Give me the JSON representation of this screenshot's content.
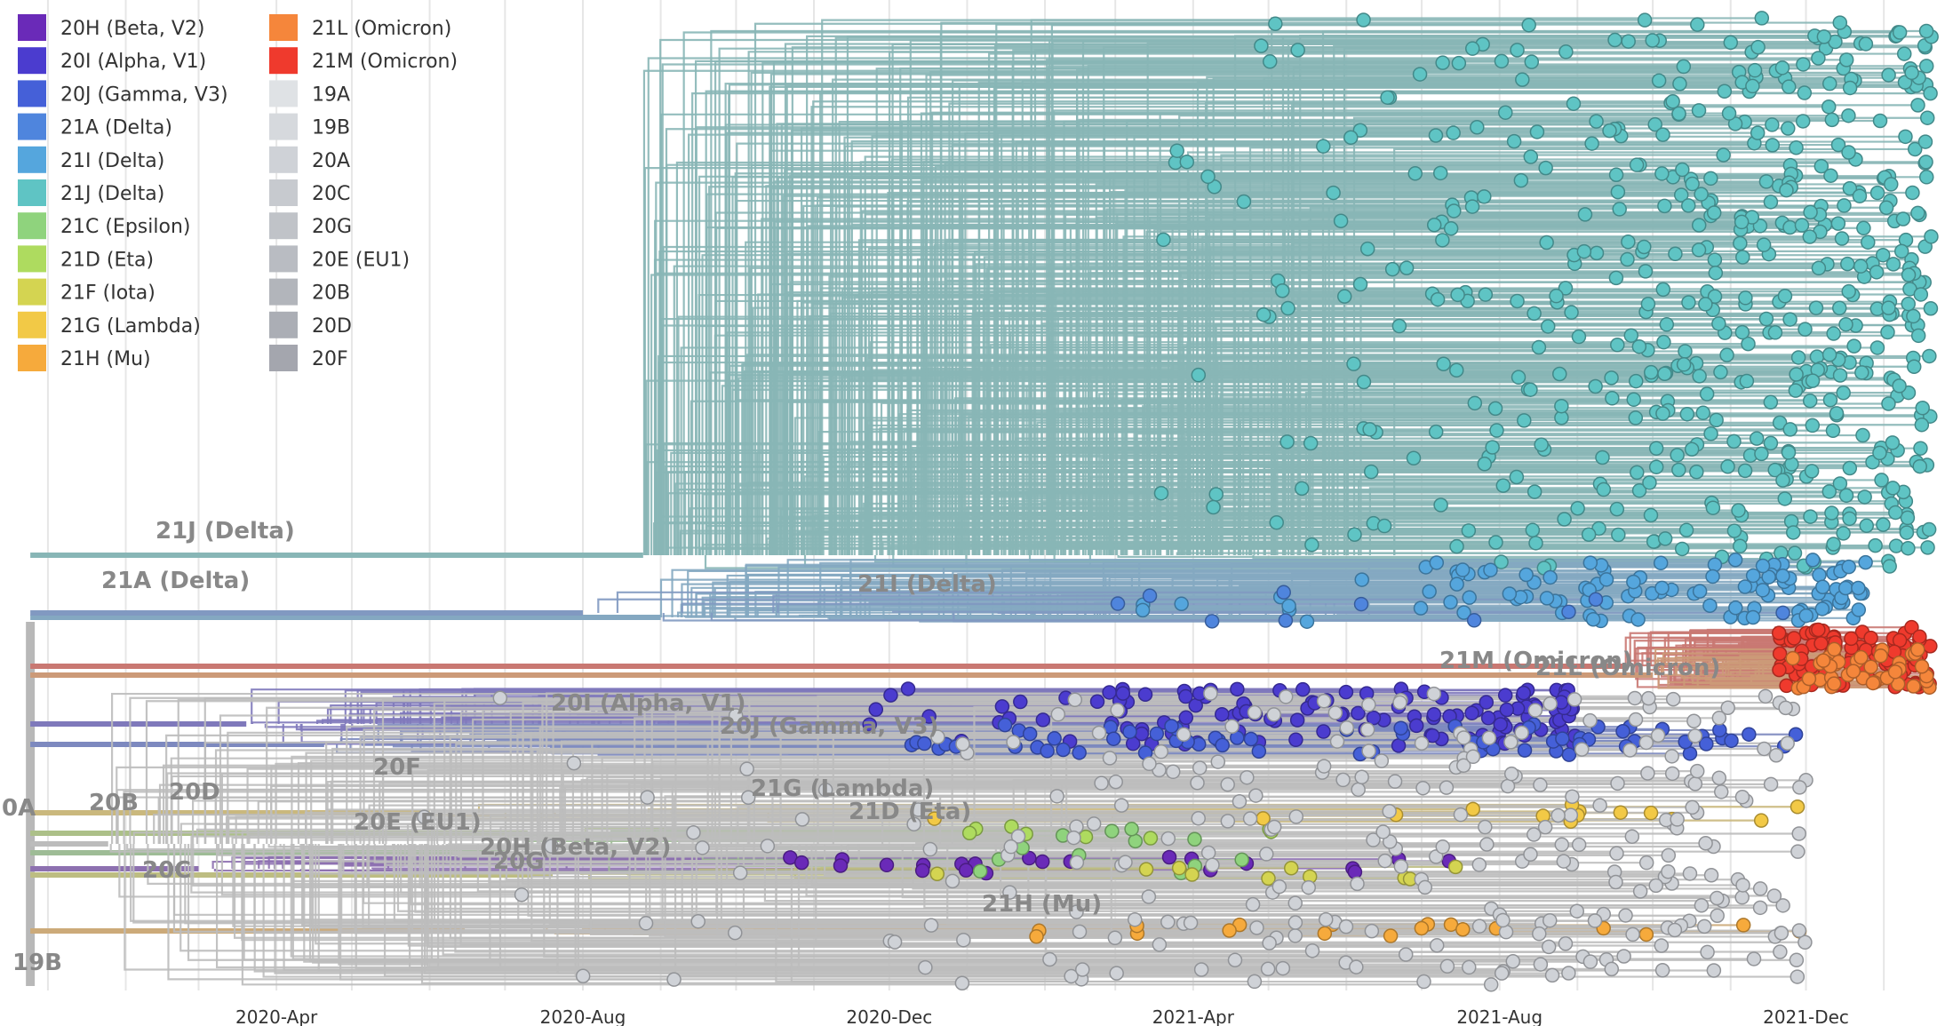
{
  "chart_data": {
    "type": "scatter",
    "title": "",
    "xlabel": "",
    "ylabel": "",
    "x_axis": {
      "type": "date",
      "range": [
        "2019-12-20",
        "2022-01-25"
      ],
      "ticks": [
        "2020-Apr",
        "2020-Aug",
        "2020-Dec",
        "2021-Apr",
        "2021-Aug",
        "2021-Dec"
      ],
      "tick_dates": [
        "2020-04-01",
        "2020-08-01",
        "2020-12-01",
        "2021-04-01",
        "2021-08-01",
        "2021-12-01"
      ]
    },
    "grid": "vertical",
    "legend_position": "top-left",
    "legend": [
      {
        "label": "20H (Beta, V2)",
        "color": "#6a2ab8"
      },
      {
        "label": "20I (Alpha, V1)",
        "color": "#4b3ccf"
      },
      {
        "label": "20J (Gamma, V3)",
        "color": "#4560d8"
      },
      {
        "label": "21A (Delta)",
        "color": "#4f85dd"
      },
      {
        "label": "21I (Delta)",
        "color": "#55a6dd"
      },
      {
        "label": "21J (Delta)",
        "color": "#5fc4c4"
      },
      {
        "label": "21C (Epsilon)",
        "color": "#8fd37d"
      },
      {
        "label": "21D (Eta)",
        "color": "#aedb5f"
      },
      {
        "label": "21F (Iota)",
        "color": "#d4d451"
      },
      {
        "label": "21G (Lambda)",
        "color": "#f2c946"
      },
      {
        "label": "21H (Mu)",
        "color": "#f6aa3c"
      },
      {
        "label": "21L (Omicron)",
        "color": "#f5863b"
      },
      {
        "label": "21M (Omicron)",
        "color": "#ef3a2d"
      },
      {
        "label": "19A",
        "color": "#dfe2e5"
      },
      {
        "label": "19B",
        "color": "#d6d9dd"
      },
      {
        "label": "20A",
        "color": "#cfd2d7"
      },
      {
        "label": "20C",
        "color": "#c7cacf"
      },
      {
        "label": "20G",
        "color": "#c0c3c8"
      },
      {
        "label": "20E (EU1)",
        "color": "#b9bcc2"
      },
      {
        "label": "20B",
        "color": "#b2b5bb"
      },
      {
        "label": "20D",
        "color": "#abaeb5"
      },
      {
        "label": "20F",
        "color": "#a4a6ae"
      }
    ],
    "clade_labels": [
      {
        "text": "21J (Delta)",
        "date": "2021-04-01",
        "color": "#888888"
      },
      {
        "text": "21A (Delta)",
        "date": "2021-02-15",
        "color": "#888888"
      },
      {
        "text": "21I (Delta)",
        "date": "2021-05-01",
        "color": "#888888"
      },
      {
        "text": "21M (Omicron)",
        "date": "2021-10-05",
        "color": "#888888"
      },
      {
        "text": "21L (Omicron)",
        "date": "2021-10-20",
        "color": "#888888"
      },
      {
        "text": "20I (Alpha, V1)",
        "date": "2020-09-20",
        "color": "#888888"
      },
      {
        "text": "20J (Gamma, V3)",
        "date": "2020-11-15",
        "color": "#888888"
      },
      {
        "text": "20F",
        "date": "2020-03-20",
        "color": "#888888"
      },
      {
        "text": "20D",
        "date": "2020-02-20",
        "color": "#888888"
      },
      {
        "text": "20B",
        "date": "2020-02-10",
        "color": "#888888"
      },
      {
        "text": "0A",
        "date": "2019-12-20",
        "color": "#888888"
      },
      {
        "text": "21G (Lambda)",
        "date": "2021-01-15",
        "color": "#888888"
      },
      {
        "text": "20E (EU1)",
        "date": "2020-06-01",
        "color": "#888888"
      },
      {
        "text": "21D (Eta)",
        "date": "2021-02-20",
        "color": "#888888"
      },
      {
        "text": "20H (Beta, V2)",
        "date": "2020-08-15",
        "color": "#888888"
      },
      {
        "text": "20C",
        "date": "2020-02-15",
        "color": "#888888"
      },
      {
        "text": "20G",
        "date": "2020-08-25",
        "color": "#888888"
      },
      {
        "text": "21H (Mu)",
        "date": "2021-02-10",
        "color": "#888888"
      },
      {
        "text": "19B",
        "date": "2019-12-22",
        "color": "#888888"
      }
    ],
    "series": [
      {
        "name": "21J (Delta)",
        "color": "#5fc4c4",
        "date_range": [
          "2021-02-01",
          "2022-01-20"
        ]
      },
      {
        "name": "21I (Delta)",
        "color": "#55a6dd",
        "date_range": [
          "2021-01-20",
          "2021-12-25"
        ]
      },
      {
        "name": "21A (Delta)",
        "color": "#4f85dd",
        "date_range": [
          "2021-03-01",
          "2021-12-01"
        ]
      },
      {
        "name": "21M (Omicron)",
        "color": "#ef3a2d",
        "date_range": [
          "2021-11-20",
          "2022-01-20"
        ]
      },
      {
        "name": "21L (Omicron)",
        "color": "#f5863b",
        "date_range": [
          "2021-11-25",
          "2022-01-20"
        ]
      },
      {
        "name": "20I (Alpha, V1)",
        "color": "#4b3ccf",
        "date_range": [
          "2020-09-20",
          "2021-09-01"
        ]
      },
      {
        "name": "20J (Gamma, V3)",
        "color": "#4560d8",
        "date_range": [
          "2020-12-01",
          "2021-12-01"
        ]
      },
      {
        "name": "20H (Beta, V2)",
        "color": "#6a2ab8",
        "date_range": [
          "2020-10-01",
          "2021-07-15"
        ]
      },
      {
        "name": "21C (Epsilon)",
        "color": "#8fd37d",
        "date_range": [
          "2021-01-01",
          "2021-05-15"
        ]
      },
      {
        "name": "21D (Eta)",
        "color": "#aedb5f",
        "date_range": [
          "2021-01-01",
          "2021-05-15"
        ]
      },
      {
        "name": "21F (Iota)",
        "color": "#d4d451",
        "date_range": [
          "2020-12-15",
          "2021-08-01"
        ]
      },
      {
        "name": "21G (Lambda)",
        "color": "#f2c946",
        "date_range": [
          "2020-12-15",
          "2021-12-20"
        ]
      },
      {
        "name": "21H (Mu)",
        "color": "#f6aa3c",
        "date_range": [
          "2021-01-15",
          "2021-12-25"
        ]
      },
      {
        "name": "20A",
        "color": "#cfd2d7",
        "date_range": [
          "2020-01-15",
          "2021-12-01"
        ]
      }
    ]
  }
}
